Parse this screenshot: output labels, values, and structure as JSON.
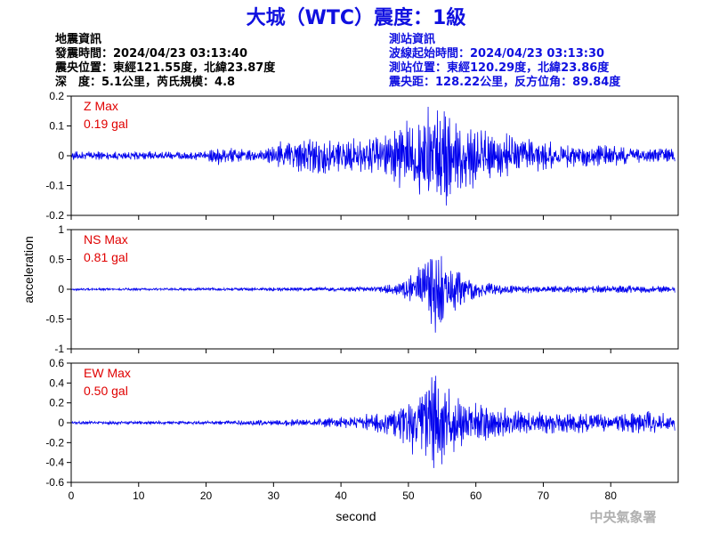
{
  "title": "大城（WTC）震度：1級",
  "earthquake_info": {
    "heading": "地震資訊",
    "origin_time": "發震時間：2024/04/23 03:13:40",
    "epicenter": "震央位置：東經121.55度，北緯23.87度",
    "depth_magnitude": "深　度：5.1公里，芮氏規模：4.8"
  },
  "station_info": {
    "heading": "測站資訊",
    "wave_start": "波線起始時間：2024/04/23 03:13:30",
    "location": "測站位置：東經120.29度，北緯23.86度",
    "distance": "震央距：128.22公里，反方位角：89.84度"
  },
  "footer": "中央氣象署",
  "colors": {
    "title": "#1010e0",
    "trace": "#0000ee",
    "max_label": "#e00000"
  },
  "chart_data": {
    "type": "line",
    "xlabel": "second",
    "ylabel": "acceleration",
    "xlim": [
      0,
      90
    ],
    "x_ticks": [
      "0",
      "10",
      "20",
      "30",
      "40",
      "50",
      "60",
      "70",
      "80"
    ],
    "grid": false,
    "subplots": [
      {
        "component": "Z",
        "label_line1": "Z Max",
        "label_line2": "0.19 gal",
        "ylim": [
          -0.2,
          0.2
        ],
        "y_ticks": [
          "0.2",
          "0.1",
          "0",
          "-0.1",
          "-0.2"
        ],
        "envelope": [
          [
            0,
            0.015
          ],
          [
            10,
            0.015
          ],
          [
            20,
            0.015
          ],
          [
            21,
            0.03
          ],
          [
            23,
            0.035
          ],
          [
            26,
            0.02
          ],
          [
            29,
            0.025
          ],
          [
            31,
            0.05
          ],
          [
            34,
            0.06
          ],
          [
            37,
            0.07
          ],
          [
            42,
            0.06
          ],
          [
            46,
            0.07
          ],
          [
            48,
            0.1
          ],
          [
            50,
            0.13
          ],
          [
            53,
            0.17
          ],
          [
            55,
            0.19
          ],
          [
            58,
            0.12
          ],
          [
            62,
            0.1
          ],
          [
            66,
            0.07
          ],
          [
            70,
            0.055
          ],
          [
            75,
            0.04
          ],
          [
            80,
            0.035
          ],
          [
            85,
            0.03
          ],
          [
            89.5,
            0.025
          ]
        ]
      },
      {
        "component": "NS",
        "label_line1": "NS Max",
        "label_line2": "0.81 gal",
        "ylim": [
          -1,
          1
        ],
        "y_ticks": [
          "1",
          "0.5",
          "0",
          "-0.5",
          "-1"
        ],
        "envelope": [
          [
            0,
            0.02
          ],
          [
            10,
            0.02
          ],
          [
            20,
            0.025
          ],
          [
            30,
            0.03
          ],
          [
            40,
            0.035
          ],
          [
            45,
            0.05
          ],
          [
            49,
            0.12
          ],
          [
            51,
            0.35
          ],
          [
            53,
            0.6
          ],
          [
            54,
            0.81
          ],
          [
            56,
            0.5
          ],
          [
            58,
            0.3
          ],
          [
            60,
            0.15
          ],
          [
            65,
            0.08
          ],
          [
            70,
            0.06
          ],
          [
            80,
            0.07
          ],
          [
            89.5,
            0.06
          ]
        ]
      },
      {
        "component": "EW",
        "label_line1": "EW Max",
        "label_line2": "0.50 gal",
        "ylim": [
          -0.6,
          0.6
        ],
        "y_ticks": [
          "0.6",
          "0.4",
          "0.2",
          "0",
          "-0.2",
          "-0.4",
          "-0.6"
        ],
        "envelope": [
          [
            0,
            0.015
          ],
          [
            20,
            0.02
          ],
          [
            30,
            0.03
          ],
          [
            35,
            0.04
          ],
          [
            40,
            0.06
          ],
          [
            45,
            0.1
          ],
          [
            49,
            0.2
          ],
          [
            51,
            0.35
          ],
          [
            53,
            0.45
          ],
          [
            54,
            0.5
          ],
          [
            56,
            0.4
          ],
          [
            58,
            0.25
          ],
          [
            62,
            0.18
          ],
          [
            66,
            0.14
          ],
          [
            70,
            0.12
          ],
          [
            75,
            0.12
          ],
          [
            80,
            0.1
          ],
          [
            85,
            0.12
          ],
          [
            89.5,
            0.1
          ]
        ]
      }
    ]
  }
}
